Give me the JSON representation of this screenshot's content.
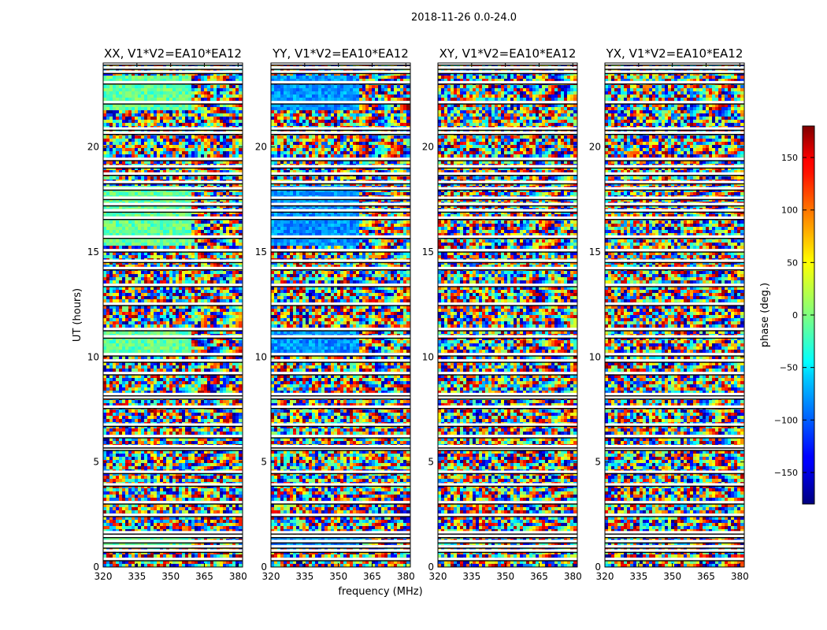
{
  "chart_data": {
    "type": "heatmap",
    "suptitle": "2018-11-26 0.0-24.0",
    "panels": [
      {
        "title": "XX, V1*V2=EA10*EA12",
        "tint": "green"
      },
      {
        "title": "YY, V1*V2=EA10*EA12",
        "tint": "blue"
      },
      {
        "title": "XY, V1*V2=EA10*EA12",
        "tint": "none"
      },
      {
        "title": "YX, V1*V2=EA10*EA12",
        "tint": "none"
      }
    ],
    "xlabel": "frequency (MHz)",
    "ylabel": "UT (hours)",
    "xlim": [
      320,
      382
    ],
    "ylim": [
      0,
      24
    ],
    "xticks": [
      320,
      335,
      350,
      365,
      380
    ],
    "yticks": [
      0,
      5,
      10,
      15,
      20
    ],
    "colorbar": {
      "label": "phase (deg.)",
      "range": [
        -180,
        180
      ],
      "ticks": [
        150,
        100,
        50,
        0,
        -50,
        -100,
        -150
      ],
      "tick_labels": [
        "150",
        "100",
        "50",
        "0",
        "−50",
        "−100",
        "−150"
      ],
      "colormap": "jet"
    },
    "flagged_hours": [
      0.35,
      0.75,
      0.95,
      1.2,
      1.45,
      1.62,
      2.45,
      3.05,
      3.9,
      4.5,
      5.6,
      5.72,
      6.2,
      6.75,
      7.6,
      8.05,
      8.2,
      9.2,
      9.8,
      10.1,
      10.95,
      11.3,
      12.5,
      13.4,
      14.2,
      14.55,
      15.05,
      15.7,
      16.6,
      16.95,
      17.25,
      17.55,
      18.0,
      18.3,
      18.7,
      19.05,
      19.4,
      20.65,
      20.85,
      22.1,
      23.05,
      23.55,
      23.75,
      23.95
    ]
  }
}
